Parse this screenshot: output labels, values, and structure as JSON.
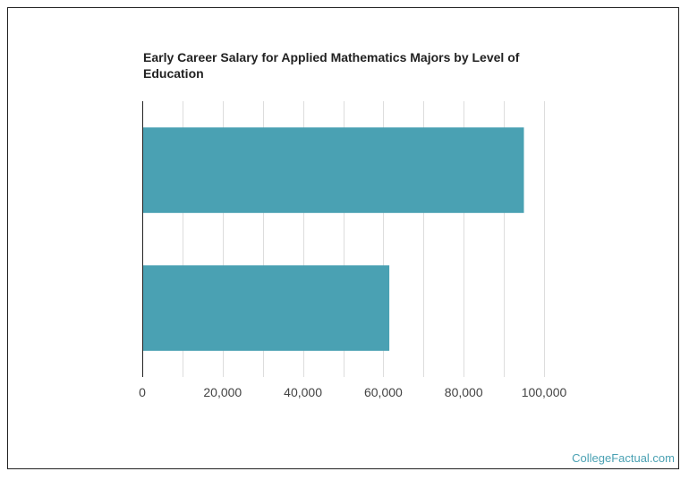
{
  "chart_data": {
    "type": "bar",
    "orientation": "horizontal",
    "title": "Early Career Salary for Applied Mathematics Majors by Level of Education",
    "categories": [
      "",
      ""
    ],
    "values": [
      95000,
      61500
    ],
    "xlim": [
      0,
      100000
    ],
    "ticks": [
      0,
      20000,
      40000,
      60000,
      80000,
      100000
    ],
    "tick_labels": [
      "0",
      "20,000",
      "40,000",
      "60,000",
      "80,000",
      "100,000"
    ],
    "grid": true,
    "bar_color": "#4aa1b3"
  },
  "credit": "CollegeFactual.com"
}
